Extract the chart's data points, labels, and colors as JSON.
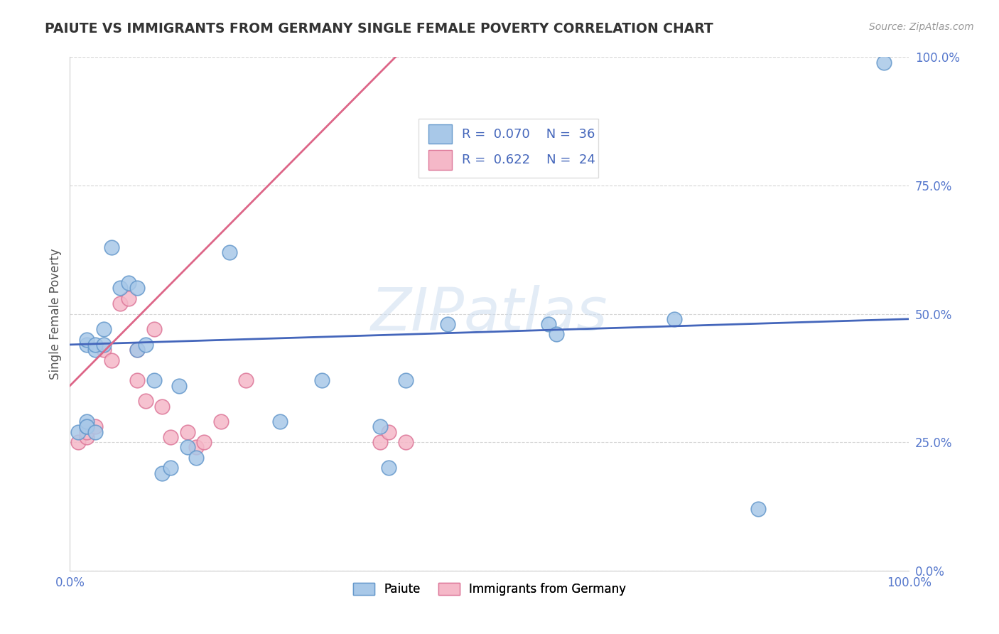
{
  "title": "PAIUTE VS IMMIGRANTS FROM GERMANY SINGLE FEMALE POVERTY CORRELATION CHART",
  "source": "Source: ZipAtlas.com",
  "ylabel": "Single Female Poverty",
  "xlim": [
    0,
    1
  ],
  "ylim": [
    0,
    1
  ],
  "xtick_positions": [
    0.0,
    1.0
  ],
  "xtick_labels": [
    "0.0%",
    "100.0%"
  ],
  "ytick_positions": [
    0.0,
    0.25,
    0.5,
    0.75,
    1.0
  ],
  "ytick_labels": [
    "0.0%",
    "25.0%",
    "50.0%",
    "75.0%",
    "100.0%"
  ],
  "watermark_text": "ZIPatlas",
  "paiute_fill": "#a8c8e8",
  "paiute_edge": "#6699cc",
  "germany_fill": "#f5b8c8",
  "germany_edge": "#dd7799",
  "trendline_paiute_color": "#4466bb",
  "trendline_germany_color": "#dd6688",
  "tick_color": "#5577cc",
  "legend_text_color": "#4466bb",
  "background_color": "#ffffff",
  "grid_color": "#cccccc",
  "title_color": "#333333",
  "source_color": "#999999",
  "ylabel_color": "#555555",
  "paiute_x": [
    0.01,
    0.02,
    0.02,
    0.02,
    0.02,
    0.02,
    0.03,
    0.03,
    0.03,
    0.04,
    0.04,
    0.05,
    0.06,
    0.07,
    0.08,
    0.08,
    0.09,
    0.1,
    0.11,
    0.12,
    0.13,
    0.14,
    0.15,
    0.19,
    0.25,
    0.3,
    0.37,
    0.38,
    0.4,
    0.45,
    0.57,
    0.58,
    0.72,
    0.82,
    0.97
  ],
  "paiute_y": [
    0.27,
    0.28,
    0.29,
    0.28,
    0.44,
    0.45,
    0.27,
    0.43,
    0.44,
    0.44,
    0.47,
    0.63,
    0.55,
    0.56,
    0.43,
    0.55,
    0.44,
    0.37,
    0.19,
    0.2,
    0.36,
    0.24,
    0.22,
    0.62,
    0.29,
    0.37,
    0.28,
    0.2,
    0.37,
    0.48,
    0.48,
    0.46,
    0.49,
    0.12,
    0.99
  ],
  "germany_x": [
    0.01,
    0.02,
    0.02,
    0.03,
    0.04,
    0.05,
    0.06,
    0.07,
    0.08,
    0.08,
    0.09,
    0.1,
    0.11,
    0.12,
    0.14,
    0.15,
    0.16,
    0.18,
    0.21,
    0.37,
    0.38,
    0.4
  ],
  "germany_y": [
    0.25,
    0.26,
    0.27,
    0.28,
    0.43,
    0.41,
    0.52,
    0.53,
    0.43,
    0.37,
    0.33,
    0.47,
    0.32,
    0.26,
    0.27,
    0.24,
    0.25,
    0.29,
    0.37,
    0.25,
    0.27,
    0.25
  ],
  "trendline_paiute_x0": 0.0,
  "trendline_paiute_y0": 0.44,
  "trendline_paiute_x1": 1.0,
  "trendline_paiute_y1": 0.49,
  "trendline_germany_x0": 0.0,
  "trendline_germany_y0": 0.36,
  "trendline_germany_x1": 0.4,
  "trendline_germany_y1": 1.02
}
